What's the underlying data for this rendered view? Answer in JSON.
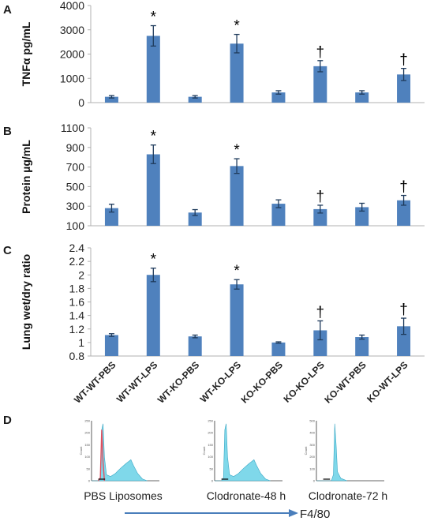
{
  "figure": {
    "panel_labels": [
      "A",
      "B",
      "C",
      "D"
    ]
  },
  "chart_data": [
    {
      "type": "bar",
      "panel": "A",
      "ylabel": "TNFα pg/mL",
      "ylim": [
        0,
        4000
      ],
      "yticks": [
        0,
        1000,
        2000,
        3000,
        4000
      ],
      "categories": [
        "WT-WT-PBS",
        "WT-WT-LPS",
        "WT-KO-PBS",
        "WT-KO-LPS",
        "KO-KO-PBS",
        "KO-KO-LPS",
        "KO-WT-PBS",
        "KO-WT-LPS"
      ],
      "values": [
        240,
        2750,
        240,
        2430,
        420,
        1500,
        420,
        1160
      ],
      "errors": [
        50,
        420,
        50,
        380,
        70,
        230,
        70,
        250
      ],
      "annotations": [
        "",
        "*",
        "",
        "*",
        "",
        "†",
        "",
        "†"
      ],
      "bar_color": "#4f81bd"
    },
    {
      "type": "bar",
      "panel": "B",
      "ylabel": "Protein µg/mL",
      "ylim": [
        100,
        1100
      ],
      "yticks": [
        100,
        300,
        500,
        700,
        900,
        1100
      ],
      "categories": [
        "WT-WT-PBS",
        "WT-WT-LPS",
        "WT-KO-PBS",
        "WT-KO-LPS",
        "KO-KO-PBS",
        "KO-KO-LPS",
        "KO-WT-PBS",
        "KO-WT-LPS"
      ],
      "values": [
        280,
        830,
        235,
        710,
        325,
        270,
        290,
        360
      ],
      "errors": [
        40,
        95,
        30,
        75,
        40,
        40,
        40,
        50
      ],
      "annotations": [
        "",
        "*",
        "",
        "*",
        "",
        "†",
        "",
        "†"
      ],
      "bar_color": "#4f81bd"
    },
    {
      "type": "bar",
      "panel": "C",
      "ylabel": "Lung wet/dry ratio",
      "ylim": [
        0.8,
        2.4
      ],
      "yticks": [
        "0.8",
        "1",
        "1.2",
        "1.4",
        "1.6",
        "1.8",
        "2",
        "2.2",
        "2.4"
      ],
      "categories": [
        "WT-WT-PBS",
        "WT-WT-LPS",
        "WT-KO-PBS",
        "WT-KO-LPS",
        "KO-KO-PBS",
        "KO-KO-LPS",
        "KO-WT-PBS",
        "KO-WT-LPS"
      ],
      "values": [
        1.11,
        2.0,
        1.09,
        1.86,
        1.0,
        1.18,
        1.08,
        1.24
      ],
      "errors": [
        0.02,
        0.1,
        0.02,
        0.07,
        0.01,
        0.14,
        0.03,
        0.12
      ],
      "annotations": [
        "",
        "*",
        "",
        "*",
        "",
        "†",
        "",
        "†"
      ],
      "bar_color": "#4f81bd"
    }
  ],
  "flow": {
    "histograms": [
      {
        "caption": "PBS Liposomes",
        "y_ticks": [
          "250",
          "200",
          "150",
          "100",
          "50",
          "0"
        ],
        "y_label": "Count"
      },
      {
        "caption": "Clodronate-48 h",
        "y_ticks": [
          "250",
          "200",
          "150",
          "100",
          "50",
          "0"
        ],
        "y_label": "Count"
      },
      {
        "caption": "Clodronate-72 h",
        "y_ticks": [
          "500",
          "400",
          "300",
          "200",
          "100",
          "0"
        ],
        "y_label": "Count"
      }
    ],
    "axis_label": "F4/80",
    "fill_color": "#7fd8ea",
    "control_color": "#e05060"
  }
}
